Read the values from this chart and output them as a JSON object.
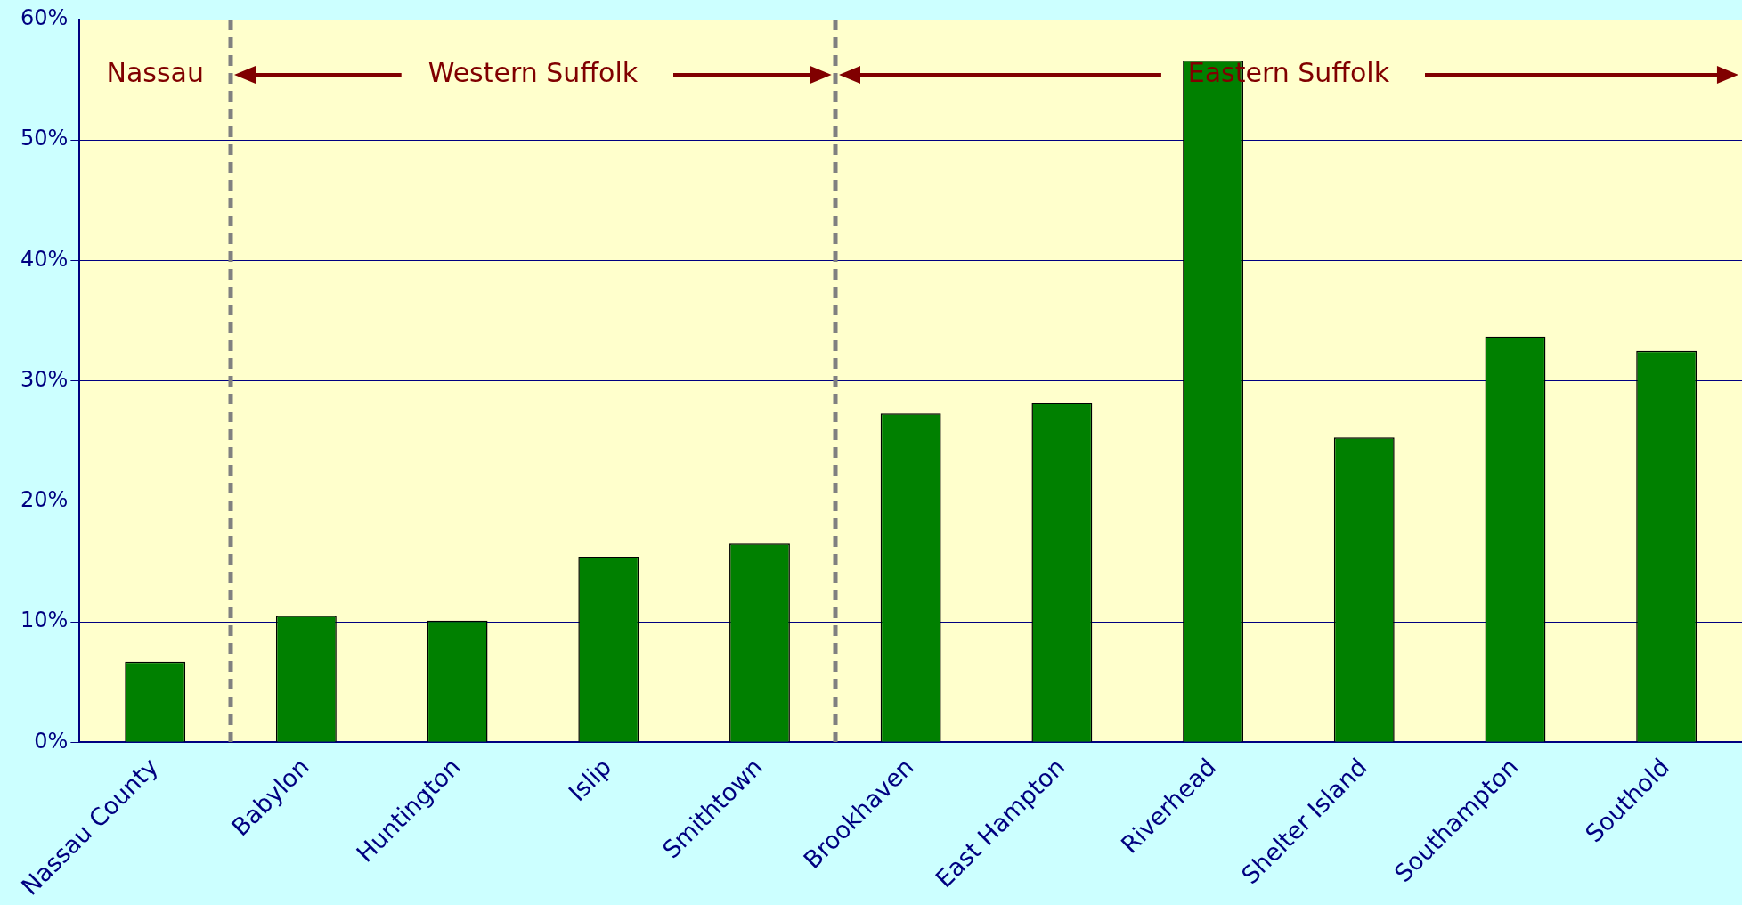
{
  "chart_data": {
    "type": "bar",
    "categories": [
      "Nassau County",
      "Babylon",
      "Huntington",
      "Islip",
      "Smithtown",
      "Brookhaven",
      "East Hampton",
      "Riverhead",
      "Shelter Island",
      "Southampton",
      "Southold"
    ],
    "values": [
      6.7,
      10.5,
      10.1,
      15.4,
      16.5,
      27.3,
      28.2,
      56.6,
      25.3,
      33.7,
      32.5
    ],
    "color": "#008000",
    "ylim": [
      0,
      60
    ],
    "yticks": [
      {
        "value": 0,
        "label": "0%"
      },
      {
        "value": 10,
        "label": "10%"
      },
      {
        "value": 20,
        "label": "20%"
      },
      {
        "value": 30,
        "label": "30%"
      },
      {
        "value": 40,
        "label": "40%"
      },
      {
        "value": 50,
        "label": "50%"
      },
      {
        "value": 60,
        "label": "60%"
      }
    ],
    "grid": "y",
    "annotations": [
      "Nassau",
      "Western Suffolk",
      "Eastern Suffolk"
    ]
  }
}
